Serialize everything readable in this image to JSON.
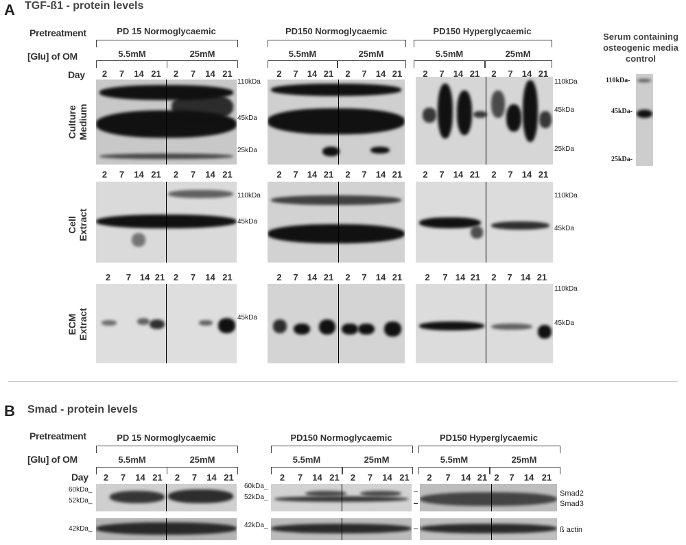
{
  "panelA": {
    "letter": "A",
    "title": "TGF-ß1 - protein levels",
    "pretreatment_label": "Pretreatment",
    "glu_label": "[Glu] of OM",
    "day_label": "Day",
    "groups": [
      "PD 15 Normoglycaemic",
      "PD150 Normoglycaemic",
      "PD150 Hyperglycaemic"
    ],
    "glu_levels": [
      "5.5mM",
      "25mM"
    ],
    "days": [
      "2",
      "7",
      "14",
      "21"
    ],
    "rows": [
      {
        "label_line1": "Culture",
        "label_line2": "Medium",
        "markers_g1": [
          "110kDa",
          "45kDa",
          "25kDa"
        ],
        "markers_g3": [
          "110kDa",
          "45kDa",
          "25kDa"
        ]
      },
      {
        "label_line1": "Cell",
        "label_line2": "Extract",
        "markers_g1": [
          "110kDa",
          "45kDa"
        ],
        "markers_g3": [
          "110kDa",
          "45kDa"
        ]
      },
      {
        "label_line1": "ECM",
        "label_line2": "Extract",
        "markers_g1": [
          "45kDa"
        ],
        "markers_g3": [
          "110kDa",
          "45kDa"
        ]
      }
    ],
    "control": {
      "title_line1": "Serum containing",
      "title_line2": "osteogenic media",
      "title_line3": "control",
      "markers": [
        "110kDa-",
        "45kDa-",
        "25kDa-"
      ]
    }
  },
  "panelB": {
    "letter": "B",
    "title": "Smad - protein levels",
    "pretreatment_label": "Pretreatment",
    "glu_label": "[Glu] of OM",
    "day_label": "Day",
    "groups": [
      "PD 15 Normoglycaemic",
      "PD150 Normoglycaemic",
      "PD150 Hyperglycaemic"
    ],
    "glu_levels": [
      "5.5mM",
      "25mM"
    ],
    "days": [
      "2",
      "7",
      "14",
      "21"
    ],
    "left_markers": [
      "60kDa_",
      "52kDa_",
      "42kDa_"
    ],
    "right_labels": [
      "Smad2",
      "Smad3",
      "ß actin"
    ]
  }
}
